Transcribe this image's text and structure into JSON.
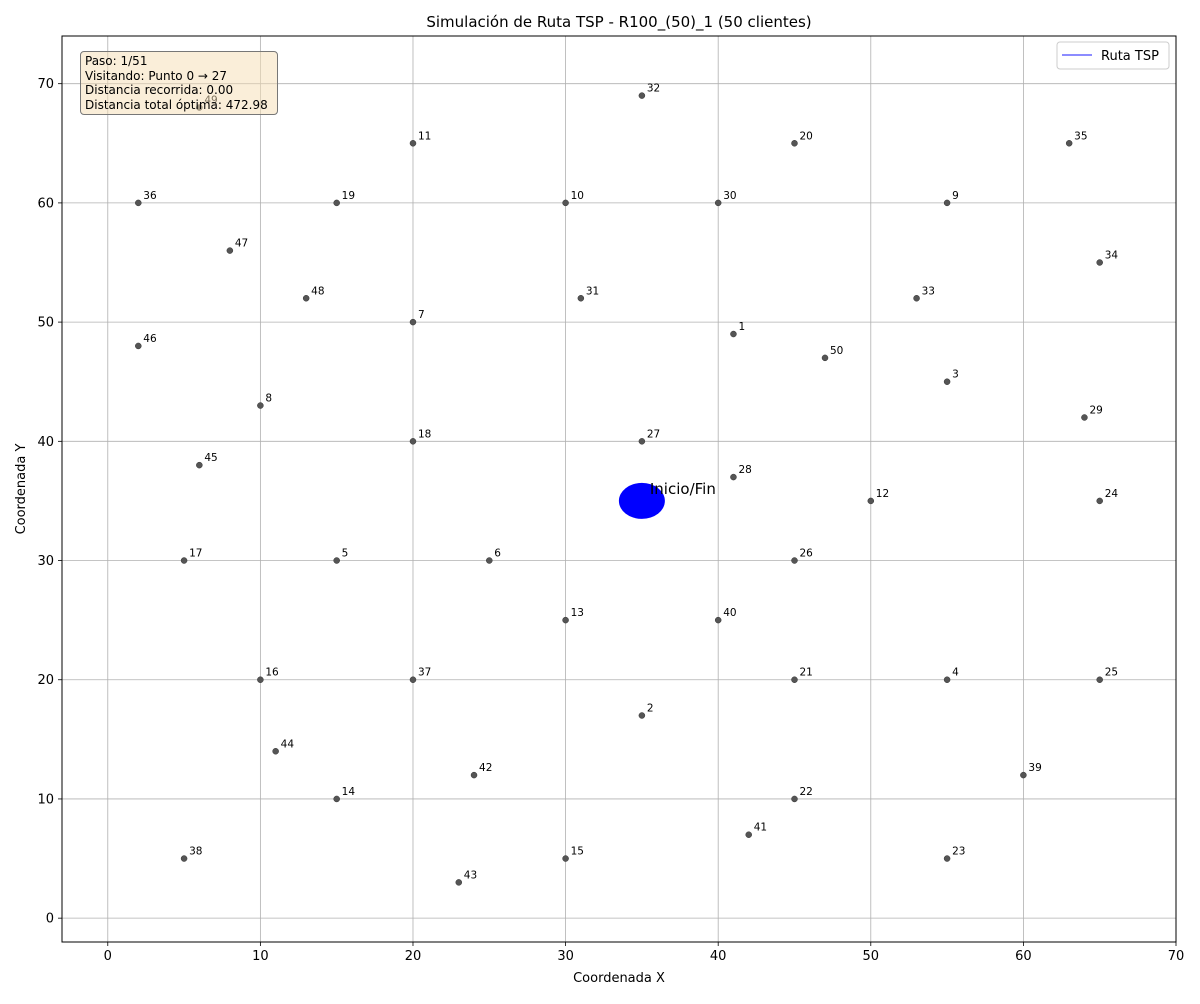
{
  "chart_data": {
    "type": "scatter",
    "title": "Simulación de Ruta TSP - R100_(50)_1 (50 clientes)",
    "xlabel": "Coordenada X",
    "ylabel": "Coordenada Y",
    "xlim": [
      -3,
      70
    ],
    "ylim": [
      -2,
      74
    ],
    "xticks": [
      0,
      10,
      20,
      30,
      40,
      50,
      60,
      70
    ],
    "yticks": [
      0,
      10,
      20,
      30,
      40,
      50,
      60,
      70
    ],
    "grid": true,
    "legend": {
      "position": "top-right",
      "entries": [
        {
          "label": "Ruta TSP",
          "color": "#6666ff"
        }
      ]
    },
    "depot": {
      "x": 35,
      "y": 35,
      "label": "Inicio/Fin",
      "color": "#0000ff"
    },
    "point_color": "#555555",
    "points": [
      {
        "id": 1,
        "x": 41,
        "y": 49
      },
      {
        "id": 2,
        "x": 35,
        "y": 17
      },
      {
        "id": 3,
        "x": 55,
        "y": 45
      },
      {
        "id": 4,
        "x": 55,
        "y": 20
      },
      {
        "id": 5,
        "x": 15,
        "y": 30
      },
      {
        "id": 6,
        "x": 25,
        "y": 30
      },
      {
        "id": 7,
        "x": 20,
        "y": 50
      },
      {
        "id": 8,
        "x": 10,
        "y": 43
      },
      {
        "id": 9,
        "x": 55,
        "y": 60
      },
      {
        "id": 10,
        "x": 30,
        "y": 60
      },
      {
        "id": 11,
        "x": 20,
        "y": 65
      },
      {
        "id": 12,
        "x": 50,
        "y": 35
      },
      {
        "id": 13,
        "x": 30,
        "y": 25
      },
      {
        "id": 14,
        "x": 15,
        "y": 10
      },
      {
        "id": 15,
        "x": 30,
        "y": 5
      },
      {
        "id": 16,
        "x": 10,
        "y": 20
      },
      {
        "id": 17,
        "x": 5,
        "y": 30
      },
      {
        "id": 18,
        "x": 20,
        "y": 40
      },
      {
        "id": 19,
        "x": 15,
        "y": 60
      },
      {
        "id": 20,
        "x": 45,
        "y": 65
      },
      {
        "id": 21,
        "x": 45,
        "y": 20
      },
      {
        "id": 22,
        "x": 45,
        "y": 10
      },
      {
        "id": 23,
        "x": 55,
        "y": 5
      },
      {
        "id": 24,
        "x": 65,
        "y": 35
      },
      {
        "id": 25,
        "x": 65,
        "y": 20
      },
      {
        "id": 26,
        "x": 45,
        "y": 30
      },
      {
        "id": 27,
        "x": 35,
        "y": 40
      },
      {
        "id": 28,
        "x": 41,
        "y": 37
      },
      {
        "id": 29,
        "x": 64,
        "y": 42
      },
      {
        "id": 30,
        "x": 40,
        "y": 60
      },
      {
        "id": 31,
        "x": 31,
        "y": 52
      },
      {
        "id": 32,
        "x": 35,
        "y": 69
      },
      {
        "id": 33,
        "x": 53,
        "y": 52
      },
      {
        "id": 34,
        "x": 65,
        "y": 55
      },
      {
        "id": 35,
        "x": 63,
        "y": 65
      },
      {
        "id": 36,
        "x": 2,
        "y": 60
      },
      {
        "id": 37,
        "x": 20,
        "y": 20
      },
      {
        "id": 38,
        "x": 5,
        "y": 5
      },
      {
        "id": 39,
        "x": 60,
        "y": 12
      },
      {
        "id": 40,
        "x": 40,
        "y": 25
      },
      {
        "id": 41,
        "x": 42,
        "y": 7
      },
      {
        "id": 42,
        "x": 24,
        "y": 12
      },
      {
        "id": 43,
        "x": 23,
        "y": 3
      },
      {
        "id": 44,
        "x": 11,
        "y": 14
      },
      {
        "id": 45,
        "x": 6,
        "y": 38
      },
      {
        "id": 46,
        "x": 2,
        "y": 48
      },
      {
        "id": 47,
        "x": 8,
        "y": 56
      },
      {
        "id": 48,
        "x": 13,
        "y": 52
      },
      {
        "id": 49,
        "x": 6,
        "y": 68
      },
      {
        "id": 50,
        "x": 47,
        "y": 47
      }
    ]
  },
  "info_box": {
    "step": "Paso: 1/51",
    "visiting": "Visitando: Punto 0 → 27",
    "distance_traveled": "Distancia recorrida: 0.00",
    "optimal_distance": "Distancia total óptima: 472.98"
  }
}
